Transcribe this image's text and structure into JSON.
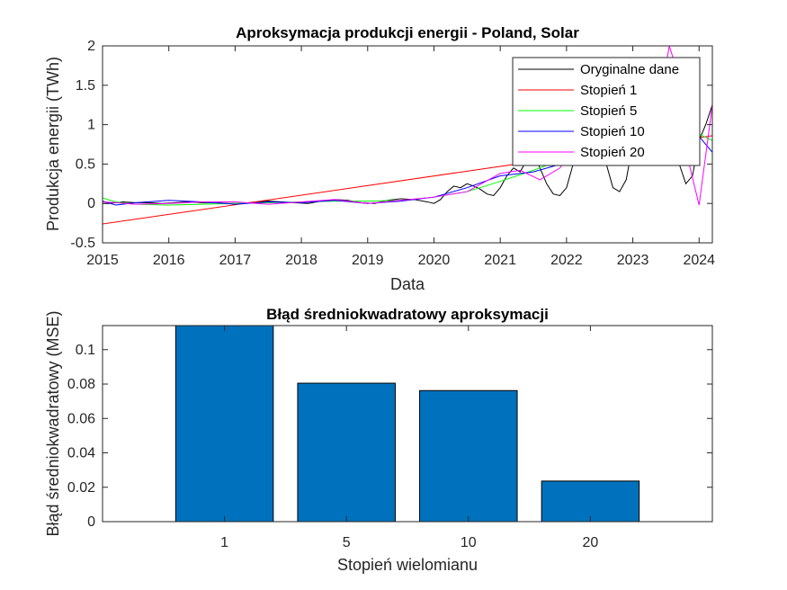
{
  "chart_data": [
    {
      "type": "line",
      "title": "Aproksymacja produkcji energii - Poland, Solar",
      "xlabel": "Data",
      "ylabel": "Produkcja energii (TWh)",
      "xlim": [
        2015,
        2024.2
      ],
      "ylim": [
        -0.5,
        2
      ],
      "xticks": [
        "2015",
        "2016",
        "2017",
        "2018",
        "2019",
        "2020",
        "2021",
        "2022",
        "2023",
        "2024"
      ],
      "yticks": [
        "-0.5",
        "0",
        "0.5",
        "1",
        "1.5",
        "2"
      ],
      "legend_position": "top-right",
      "series": [
        {
          "name": "Oryginalne dane",
          "color": "#000000",
          "x": [
            2015.0,
            2015.1,
            2015.2,
            2015.3,
            2015.5,
            2015.7,
            2015.9,
            2016.1,
            2016.3,
            2016.5,
            2016.7,
            2016.9,
            2017.1,
            2017.3,
            2017.5,
            2017.7,
            2017.9,
            2018.1,
            2018.3,
            2018.5,
            2018.7,
            2018.9,
            2019.1,
            2019.3,
            2019.5,
            2019.7,
            2019.9,
            2020.0,
            2020.1,
            2020.2,
            2020.3,
            2020.4,
            2020.5,
            2020.6,
            2020.7,
            2020.8,
            2020.9,
            2021.0,
            2021.1,
            2021.2,
            2021.3,
            2021.4,
            2021.5,
            2021.6,
            2021.7,
            2021.8,
            2021.9,
            2022.0,
            2022.1,
            2022.2,
            2022.3,
            2022.4,
            2022.5,
            2022.6,
            2022.7,
            2022.8,
            2022.9,
            2023.0,
            2023.1,
            2023.2,
            2023.3,
            2023.4,
            2023.5,
            2023.6,
            2023.7,
            2023.8,
            2023.9,
            2024.0,
            2024.1,
            2024.2
          ],
          "y": [
            0.0,
            0.0,
            0.01,
            0.02,
            0.01,
            0.01,
            0.0,
            0.01,
            0.02,
            0.01,
            0.01,
            0.0,
            0.0,
            0.02,
            0.03,
            0.02,
            0.01,
            0.0,
            0.03,
            0.05,
            0.04,
            0.01,
            0.0,
            0.04,
            0.06,
            0.05,
            0.02,
            0.0,
            0.05,
            0.15,
            0.22,
            0.2,
            0.25,
            0.22,
            0.18,
            0.12,
            0.1,
            0.2,
            0.35,
            0.45,
            0.4,
            0.55,
            0.62,
            0.45,
            0.25,
            0.12,
            0.1,
            0.2,
            0.5,
            0.9,
            1.0,
            1.1,
            0.85,
            0.5,
            0.2,
            0.15,
            0.3,
            0.75,
            1.1,
            1.2,
            1.15,
            1.3,
            1.2,
            0.9,
            0.5,
            0.25,
            0.35,
            0.8,
            1.0,
            1.25
          ]
        },
        {
          "name": "Stopień 1",
          "color": "#ff0000",
          "x": [
            2015.0,
            2024.2
          ],
          "y": [
            -0.26,
            0.86
          ]
        },
        {
          "name": "Stopień 5",
          "color": "#00ff00",
          "x": [
            2015.0,
            2015.2,
            2015.5,
            2016.0,
            2016.5,
            2017.0,
            2017.5,
            2018.0,
            2018.5,
            2019.0,
            2019.5,
            2020.0,
            2020.5,
            2021.0,
            2021.5,
            2022.0,
            2022.5,
            2023.0,
            2023.5,
            2024.0,
            2024.2
          ],
          "y": [
            0.07,
            0.02,
            -0.01,
            -0.02,
            -0.01,
            0.0,
            0.01,
            0.02,
            0.03,
            0.03,
            0.04,
            0.08,
            0.15,
            0.28,
            0.42,
            0.58,
            0.72,
            0.84,
            0.92,
            0.88,
            0.8
          ]
        },
        {
          "name": "Stopień 10",
          "color": "#0000ff",
          "x": [
            2015.0,
            2015.2,
            2015.5,
            2016.0,
            2016.5,
            2017.0,
            2017.5,
            2018.0,
            2018.5,
            2019.0,
            2019.5,
            2020.0,
            2020.5,
            2021.0,
            2021.5,
            2022.0,
            2022.5,
            2023.0,
            2023.5,
            2024.0,
            2024.2
          ],
          "y": [
            0.03,
            -0.02,
            0.01,
            0.04,
            0.02,
            -0.01,
            0.02,
            0.01,
            0.04,
            0.0,
            0.03,
            0.08,
            0.2,
            0.35,
            0.4,
            0.52,
            0.65,
            0.7,
            0.95,
            0.85,
            0.65
          ]
        },
        {
          "name": "Stopień 20",
          "color": "#ff00ff",
          "x": [
            2015.0,
            2015.2,
            2015.5,
            2016.0,
            2016.5,
            2017.0,
            2017.5,
            2018.0,
            2018.5,
            2019.0,
            2019.5,
            2020.0,
            2020.5,
            2021.0,
            2021.3,
            2021.6,
            2021.9,
            2022.2,
            2022.5,
            2022.8,
            2023.0,
            2023.2,
            2023.4,
            2023.55,
            2023.7,
            2023.85,
            2024.0,
            2024.2
          ],
          "y": [
            0.02,
            0.01,
            -0.01,
            0.0,
            0.02,
            0.02,
            -0.01,
            0.02,
            0.05,
            0.0,
            0.04,
            0.08,
            0.15,
            0.38,
            0.42,
            0.3,
            0.45,
            0.78,
            0.95,
            0.72,
            0.5,
            0.75,
            1.25,
            2.0,
            1.6,
            0.5,
            -0.02,
            1.25
          ]
        }
      ]
    },
    {
      "type": "bar",
      "title": "Błąd średniokwadratowy aproksymacji",
      "xlabel": "Stopień wielomianu",
      "ylabel": "Błąd średniokwadratowy (MSE)",
      "categories": [
        "1",
        "5",
        "10",
        "20"
      ],
      "values": [
        0.114,
        0.0805,
        0.0762,
        0.0236
      ],
      "ylim": [
        0,
        0.114
      ],
      "yticks": [
        "0",
        "0.02",
        "0.04",
        "0.06",
        "0.08",
        "0.1"
      ],
      "bar_color": "#0072bd",
      "grid": false
    }
  ]
}
